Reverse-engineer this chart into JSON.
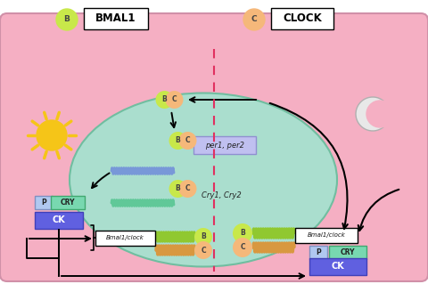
{
  "pink_bg": "#f5afc3",
  "teal_cell": "#aadece",
  "outer_bg": "#ffffff",
  "bmal1_color": "#c8e84a",
  "clock_color": "#f5b87a",
  "per_box_color": "#c0c0f0",
  "per_box_edge": "#9090d0",
  "cry_box_color": "#78d8b0",
  "ck_box_color": "#6060e0",
  "p_box_color": "#b0c8f0",
  "bmal1_clock_box": "#ffffff",
  "dashed_color": "#e03060",
  "sun_color": "#f5c518",
  "moon_color": "#d0d0d0",
  "wave_blue": "#7898d8",
  "wave_teal": "#60c898",
  "wave_green": "#90c830",
  "wave_orange": "#d89840",
  "arrow_color": "#111111",
  "title_bmal1": "BMAL1",
  "title_clock": "CLOCK",
  "label_per": "per1, per2",
  "label_cry": "Cry1, Cry2",
  "label_bmal1_clock": "Bmal1/clock",
  "label_p": "P",
  "label_cry_tag": "CRY",
  "label_ck": "CK"
}
